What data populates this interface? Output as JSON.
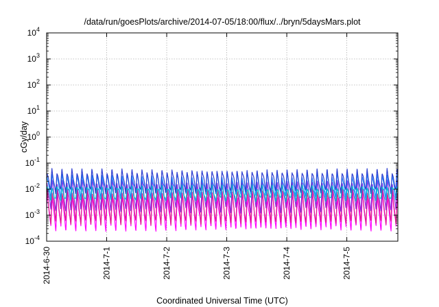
{
  "chart_data": {
    "type": "line",
    "title": "/data/run/goesPlots/archive/2014-07-05/18:00/flux/../bryn/5daysMars.plot",
    "xlabel": "Coordinated Universal Time (UTC)",
    "ylabel": "cGy/day",
    "yscale": "log",
    "ylim": [
      0.0001,
      10000
    ],
    "y_ticks": [
      {
        "base": "10",
        "exp": "-4"
      },
      {
        "base": "10",
        "exp": "-3"
      },
      {
        "base": "10",
        "exp": "-2"
      },
      {
        "base": "10",
        "exp": "-1"
      },
      {
        "base": "10",
        "exp": "0"
      },
      {
        "base": "10",
        "exp": "1"
      },
      {
        "base": "10",
        "exp": "2"
      },
      {
        "base": "10",
        "exp": "3"
      },
      {
        "base": "10",
        "exp": "4"
      }
    ],
    "x_range_days": [
      0,
      5.85
    ],
    "x_ticks": [
      "2014-6-30",
      "2014-7-1",
      "2014-7-2",
      "2014-7-3",
      "2014-7-4",
      "2014-7-5"
    ],
    "grid": true,
    "legend": "none",
    "oscillation_period_hours": 2,
    "series": [
      {
        "color": "#ff00ff",
        "peak": 0.006,
        "trough": 0.0003
      },
      {
        "color": "#e0208a",
        "peak": 0.009,
        "trough": 0.0005
      },
      {
        "color": "#8a2be2",
        "peak": 0.02,
        "trough": 0.0015
      },
      {
        "color": "#00c8c8",
        "peak": 0.012,
        "trough": 0.004
      },
      {
        "color": "#1e90ff",
        "peak": 0.035,
        "trough": 0.006
      },
      {
        "color": "#2f3fd0",
        "peak": 0.05,
        "trough": 0.008
      }
    ]
  }
}
